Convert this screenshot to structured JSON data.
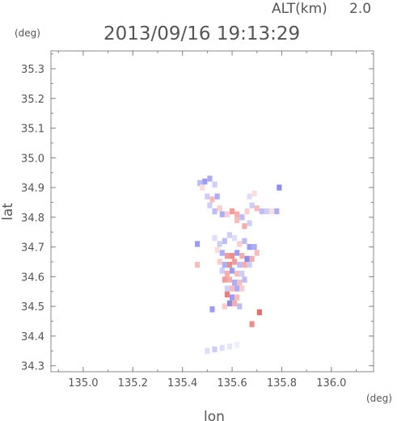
{
  "header": {
    "altitude_label": "ALT(km)",
    "altitude_value": "2.0",
    "timestamp": "2013/09/16 19:13:29"
  },
  "chart_data": {
    "type": "heatmap",
    "title": "2013/09/16 19:13:29",
    "xlabel": "lon",
    "ylabel": "lat",
    "x_unit": "(deg)",
    "y_unit": "(deg)",
    "xlim": [
      134.87,
      136.17
    ],
    "ylim": [
      34.28,
      35.36
    ],
    "x_ticks": [
      135.0,
      135.2,
      135.4,
      135.6,
      135.8,
      136.0
    ],
    "x_tick_labels": [
      "135.0",
      "135.2",
      "135.4",
      "135.6",
      "135.8",
      "136.0"
    ],
    "y_ticks": [
      34.3,
      34.4,
      34.5,
      34.6,
      34.7,
      34.8,
      34.9,
      35.0,
      35.1,
      35.2,
      35.3
    ],
    "y_tick_labels": [
      "34.3",
      "34.4",
      "34.5",
      "34.6",
      "34.7",
      "34.8",
      "34.9",
      "35.0",
      "35.1",
      "35.2",
      "35.3"
    ],
    "grid": false,
    "colors": {
      "positive": "#e85a5a",
      "negative": "#5a5ae8",
      "axis": "#888888"
    },
    "cells": [
      {
        "lon": 135.47,
        "lat": 34.915,
        "v": -0.4
      },
      {
        "lon": 135.49,
        "lat": 34.92,
        "v": -0.6
      },
      {
        "lon": 135.51,
        "lat": 34.93,
        "v": -0.5
      },
      {
        "lon": 135.53,
        "lat": 34.91,
        "v": -0.3
      },
      {
        "lon": 135.48,
        "lat": 34.9,
        "v": 0.2
      },
      {
        "lon": 135.5,
        "lat": 34.87,
        "v": -0.3
      },
      {
        "lon": 135.52,
        "lat": 34.86,
        "v": 0.4
      },
      {
        "lon": 135.54,
        "lat": 34.87,
        "v": -0.5
      },
      {
        "lon": 135.51,
        "lat": 34.84,
        "v": -0.3
      },
      {
        "lon": 135.55,
        "lat": 34.83,
        "v": 0.3
      },
      {
        "lon": 135.53,
        "lat": 34.82,
        "v": -0.4
      },
      {
        "lon": 135.56,
        "lat": 34.81,
        "v": -0.5
      },
      {
        "lon": 135.58,
        "lat": 34.81,
        "v": 0.3
      },
      {
        "lon": 135.6,
        "lat": 34.82,
        "v": 0.6
      },
      {
        "lon": 135.62,
        "lat": 34.81,
        "v": 0.5
      },
      {
        "lon": 135.64,
        "lat": 34.8,
        "v": -0.4
      },
      {
        "lon": 135.66,
        "lat": 34.82,
        "v": 0.3
      },
      {
        "lon": 135.68,
        "lat": 34.84,
        "v": -0.3
      },
      {
        "lon": 135.7,
        "lat": 34.83,
        "v": 0.4
      },
      {
        "lon": 135.72,
        "lat": 34.82,
        "v": -0.4
      },
      {
        "lon": 135.74,
        "lat": 34.82,
        "v": -0.3
      },
      {
        "lon": 135.76,
        "lat": 34.82,
        "v": 0.2
      },
      {
        "lon": 135.78,
        "lat": 34.82,
        "v": -0.5
      },
      {
        "lon": 135.67,
        "lat": 34.87,
        "v": -0.2
      },
      {
        "lon": 135.69,
        "lat": 34.88,
        "v": 0.2
      },
      {
        "lon": 135.62,
        "lat": 34.79,
        "v": 0.4
      },
      {
        "lon": 135.65,
        "lat": 34.77,
        "v": 0.5
      },
      {
        "lon": 135.67,
        "lat": 34.78,
        "v": -0.3
      },
      {
        "lon": 135.79,
        "lat": 34.9,
        "v": -0.7
      },
      {
        "lon": 135.46,
        "lat": 34.71,
        "v": -0.6
      },
      {
        "lon": 135.53,
        "lat": 34.73,
        "v": -0.2
      },
      {
        "lon": 135.55,
        "lat": 34.71,
        "v": -0.3
      },
      {
        "lon": 135.57,
        "lat": 34.72,
        "v": -0.4
      },
      {
        "lon": 135.59,
        "lat": 34.74,
        "v": -0.3
      },
      {
        "lon": 135.61,
        "lat": 34.73,
        "v": -0.2
      },
      {
        "lon": 135.63,
        "lat": 34.71,
        "v": 0.3
      },
      {
        "lon": 135.65,
        "lat": 34.72,
        "v": -0.4
      },
      {
        "lon": 135.67,
        "lat": 34.7,
        "v": -0.6
      },
      {
        "lon": 135.69,
        "lat": 34.7,
        "v": -0.5
      },
      {
        "lon": 135.7,
        "lat": 34.68,
        "v": 0.4
      },
      {
        "lon": 135.54,
        "lat": 34.69,
        "v": 0.2
      },
      {
        "lon": 135.56,
        "lat": 34.68,
        "v": -0.5
      },
      {
        "lon": 135.58,
        "lat": 34.67,
        "v": 0.6
      },
      {
        "lon": 135.6,
        "lat": 34.67,
        "v": 0.7
      },
      {
        "lon": 135.62,
        "lat": 34.68,
        "v": -0.6
      },
      {
        "lon": 135.64,
        "lat": 34.67,
        "v": 0.5
      },
      {
        "lon": 135.66,
        "lat": 34.66,
        "v": -0.7
      },
      {
        "lon": 135.68,
        "lat": 34.66,
        "v": 0.5
      },
      {
        "lon": 135.55,
        "lat": 34.65,
        "v": 0.3
      },
      {
        "lon": 135.57,
        "lat": 34.64,
        "v": -0.5
      },
      {
        "lon": 135.59,
        "lat": 34.64,
        "v": 0.7
      },
      {
        "lon": 135.61,
        "lat": 34.65,
        "v": 0.6
      },
      {
        "lon": 135.63,
        "lat": 34.64,
        "v": -0.4
      },
      {
        "lon": 135.65,
        "lat": 34.64,
        "v": 0.5
      },
      {
        "lon": 135.67,
        "lat": 34.64,
        "v": -0.3
      },
      {
        "lon": 135.46,
        "lat": 34.64,
        "v": 0.4
      },
      {
        "lon": 135.56,
        "lat": 34.62,
        "v": -0.3
      },
      {
        "lon": 135.58,
        "lat": 34.61,
        "v": 0.5
      },
      {
        "lon": 135.6,
        "lat": 34.62,
        "v": -0.6
      },
      {
        "lon": 135.62,
        "lat": 34.61,
        "v": 0.4
      },
      {
        "lon": 135.64,
        "lat": 34.61,
        "v": -0.3
      },
      {
        "lon": 135.57,
        "lat": 34.59,
        "v": 0.6
      },
      {
        "lon": 135.59,
        "lat": 34.59,
        "v": 0.5
      },
      {
        "lon": 135.61,
        "lat": 34.58,
        "v": -0.5
      },
      {
        "lon": 135.63,
        "lat": 34.58,
        "v": 0.4
      },
      {
        "lon": 135.65,
        "lat": 34.59,
        "v": -0.4
      },
      {
        "lon": 135.58,
        "lat": 34.56,
        "v": -0.3
      },
      {
        "lon": 135.6,
        "lat": 34.56,
        "v": 0.4
      },
      {
        "lon": 135.62,
        "lat": 34.56,
        "v": -0.5
      },
      {
        "lon": 135.64,
        "lat": 34.56,
        "v": 0.3
      },
      {
        "lon": 135.58,
        "lat": 34.54,
        "v": 0.8
      },
      {
        "lon": 135.6,
        "lat": 34.53,
        "v": -0.6
      },
      {
        "lon": 135.62,
        "lat": 34.53,
        "v": 0.4
      },
      {
        "lon": 135.59,
        "lat": 34.51,
        "v": -0.7
      },
      {
        "lon": 135.61,
        "lat": 34.51,
        "v": 0.5
      },
      {
        "lon": 135.63,
        "lat": 34.5,
        "v": -0.4
      },
      {
        "lon": 135.52,
        "lat": 34.49,
        "v": -0.6
      },
      {
        "lon": 135.57,
        "lat": 34.5,
        "v": 0.3
      },
      {
        "lon": 135.71,
        "lat": 34.48,
        "v": 0.9
      },
      {
        "lon": 135.68,
        "lat": 34.44,
        "v": 0.7
      },
      {
        "lon": 135.5,
        "lat": 34.35,
        "v": -0.2
      },
      {
        "lon": 135.53,
        "lat": 34.355,
        "v": -0.3
      },
      {
        "lon": 135.56,
        "lat": 34.36,
        "v": -0.2
      },
      {
        "lon": 135.59,
        "lat": 34.365,
        "v": -0.15
      },
      {
        "lon": 135.62,
        "lat": 34.37,
        "v": -0.1
      }
    ]
  }
}
